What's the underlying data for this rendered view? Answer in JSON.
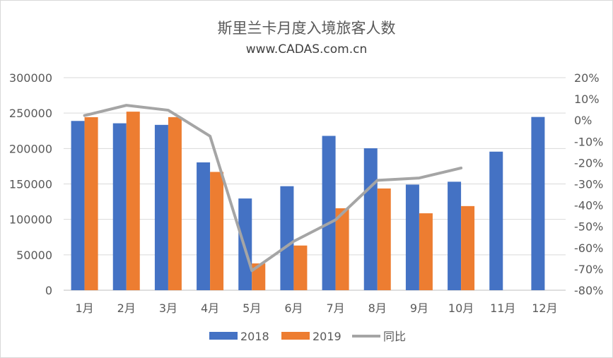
{
  "chart_data": {
    "type": "bar",
    "title": "斯里兰卡月度入境旅客人数",
    "subtitle": "www.CADAS.com.cn",
    "categories": [
      "1月",
      "2月",
      "3月",
      "4月",
      "5月",
      "6月",
      "7月",
      "8月",
      "9月",
      "10月",
      "11月",
      "12月"
    ],
    "series": [
      {
        "name": "2018",
        "type": "bar",
        "axis": "left",
        "color": "#4472c4",
        "values": [
          238924,
          235618,
          233382,
          180429,
          129466,
          146828,
          217829,
          200359,
          149087,
          153123,
          195582,
          244536
        ]
      },
      {
        "name": "2019",
        "type": "bar",
        "axis": "left",
        "color": "#ed7d31",
        "values": [
          244239,
          252033,
          244328,
          166975,
          37802,
          63072,
          115701,
          143587,
          108575,
          118743,
          null,
          null
        ]
      },
      {
        "name": "同比",
        "type": "line",
        "axis": "right",
        "color": "#a5a5a5",
        "values": [
          2.2,
          7.0,
          4.7,
          -7.5,
          -70.8,
          -57.0,
          -46.9,
          -28.3,
          -27.2,
          -22.5,
          null,
          null
        ]
      }
    ],
    "ylim": [
      0,
      300000
    ],
    "yticks": [
      "300000",
      "250000",
      "200000",
      "150000",
      "100000",
      "50000",
      "0"
    ],
    "y2lim": [
      -80,
      20
    ],
    "y2ticks": [
      "20%",
      "10%",
      "0%",
      "-10%",
      "-20%",
      "-30%",
      "-40%",
      "-50%",
      "-60%",
      "-70%",
      "-80%"
    ],
    "grid": true,
    "legend": {
      "position": "bottom",
      "items": [
        "2018",
        "2019",
        "同比"
      ]
    }
  }
}
